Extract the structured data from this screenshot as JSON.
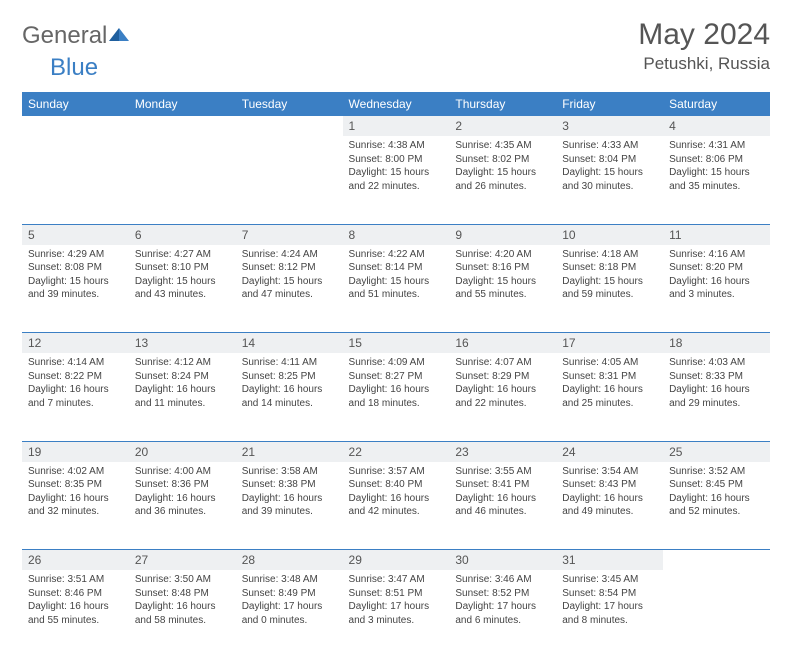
{
  "logo": {
    "part1": "General",
    "part2": "Blue"
  },
  "title": "May 2024",
  "location": "Petushki, Russia",
  "colors": {
    "header_bg": "#3b7fc4",
    "header_fg": "#ffffff",
    "daynum_bg": "#eef0f2",
    "border": "#3b7fc4",
    "text": "#444444",
    "title_color": "#555555"
  },
  "weekdays": [
    "Sunday",
    "Monday",
    "Tuesday",
    "Wednesday",
    "Thursday",
    "Friday",
    "Saturday"
  ],
  "weeks": [
    [
      null,
      null,
      null,
      {
        "n": "1",
        "sr": "4:38 AM",
        "ss": "8:00 PM",
        "dl": "15 hours and 22 minutes."
      },
      {
        "n": "2",
        "sr": "4:35 AM",
        "ss": "8:02 PM",
        "dl": "15 hours and 26 minutes."
      },
      {
        "n": "3",
        "sr": "4:33 AM",
        "ss": "8:04 PM",
        "dl": "15 hours and 30 minutes."
      },
      {
        "n": "4",
        "sr": "4:31 AM",
        "ss": "8:06 PM",
        "dl": "15 hours and 35 minutes."
      }
    ],
    [
      {
        "n": "5",
        "sr": "4:29 AM",
        "ss": "8:08 PM",
        "dl": "15 hours and 39 minutes."
      },
      {
        "n": "6",
        "sr": "4:27 AM",
        "ss": "8:10 PM",
        "dl": "15 hours and 43 minutes."
      },
      {
        "n": "7",
        "sr": "4:24 AM",
        "ss": "8:12 PM",
        "dl": "15 hours and 47 minutes."
      },
      {
        "n": "8",
        "sr": "4:22 AM",
        "ss": "8:14 PM",
        "dl": "15 hours and 51 minutes."
      },
      {
        "n": "9",
        "sr": "4:20 AM",
        "ss": "8:16 PM",
        "dl": "15 hours and 55 minutes."
      },
      {
        "n": "10",
        "sr": "4:18 AM",
        "ss": "8:18 PM",
        "dl": "15 hours and 59 minutes."
      },
      {
        "n": "11",
        "sr": "4:16 AM",
        "ss": "8:20 PM",
        "dl": "16 hours and 3 minutes."
      }
    ],
    [
      {
        "n": "12",
        "sr": "4:14 AM",
        "ss": "8:22 PM",
        "dl": "16 hours and 7 minutes."
      },
      {
        "n": "13",
        "sr": "4:12 AM",
        "ss": "8:24 PM",
        "dl": "16 hours and 11 minutes."
      },
      {
        "n": "14",
        "sr": "4:11 AM",
        "ss": "8:25 PM",
        "dl": "16 hours and 14 minutes."
      },
      {
        "n": "15",
        "sr": "4:09 AM",
        "ss": "8:27 PM",
        "dl": "16 hours and 18 minutes."
      },
      {
        "n": "16",
        "sr": "4:07 AM",
        "ss": "8:29 PM",
        "dl": "16 hours and 22 minutes."
      },
      {
        "n": "17",
        "sr": "4:05 AM",
        "ss": "8:31 PM",
        "dl": "16 hours and 25 minutes."
      },
      {
        "n": "18",
        "sr": "4:03 AM",
        "ss": "8:33 PM",
        "dl": "16 hours and 29 minutes."
      }
    ],
    [
      {
        "n": "19",
        "sr": "4:02 AM",
        "ss": "8:35 PM",
        "dl": "16 hours and 32 minutes."
      },
      {
        "n": "20",
        "sr": "4:00 AM",
        "ss": "8:36 PM",
        "dl": "16 hours and 36 minutes."
      },
      {
        "n": "21",
        "sr": "3:58 AM",
        "ss": "8:38 PM",
        "dl": "16 hours and 39 minutes."
      },
      {
        "n": "22",
        "sr": "3:57 AM",
        "ss": "8:40 PM",
        "dl": "16 hours and 42 minutes."
      },
      {
        "n": "23",
        "sr": "3:55 AM",
        "ss": "8:41 PM",
        "dl": "16 hours and 46 minutes."
      },
      {
        "n": "24",
        "sr": "3:54 AM",
        "ss": "8:43 PM",
        "dl": "16 hours and 49 minutes."
      },
      {
        "n": "25",
        "sr": "3:52 AM",
        "ss": "8:45 PM",
        "dl": "16 hours and 52 minutes."
      }
    ],
    [
      {
        "n": "26",
        "sr": "3:51 AM",
        "ss": "8:46 PM",
        "dl": "16 hours and 55 minutes."
      },
      {
        "n": "27",
        "sr": "3:50 AM",
        "ss": "8:48 PM",
        "dl": "16 hours and 58 minutes."
      },
      {
        "n": "28",
        "sr": "3:48 AM",
        "ss": "8:49 PM",
        "dl": "17 hours and 0 minutes."
      },
      {
        "n": "29",
        "sr": "3:47 AM",
        "ss": "8:51 PM",
        "dl": "17 hours and 3 minutes."
      },
      {
        "n": "30",
        "sr": "3:46 AM",
        "ss": "8:52 PM",
        "dl": "17 hours and 6 minutes."
      },
      {
        "n": "31",
        "sr": "3:45 AM",
        "ss": "8:54 PM",
        "dl": "17 hours and 8 minutes."
      },
      null
    ]
  ],
  "labels": {
    "sunrise": "Sunrise:",
    "sunset": "Sunset:",
    "daylight": "Daylight:"
  }
}
